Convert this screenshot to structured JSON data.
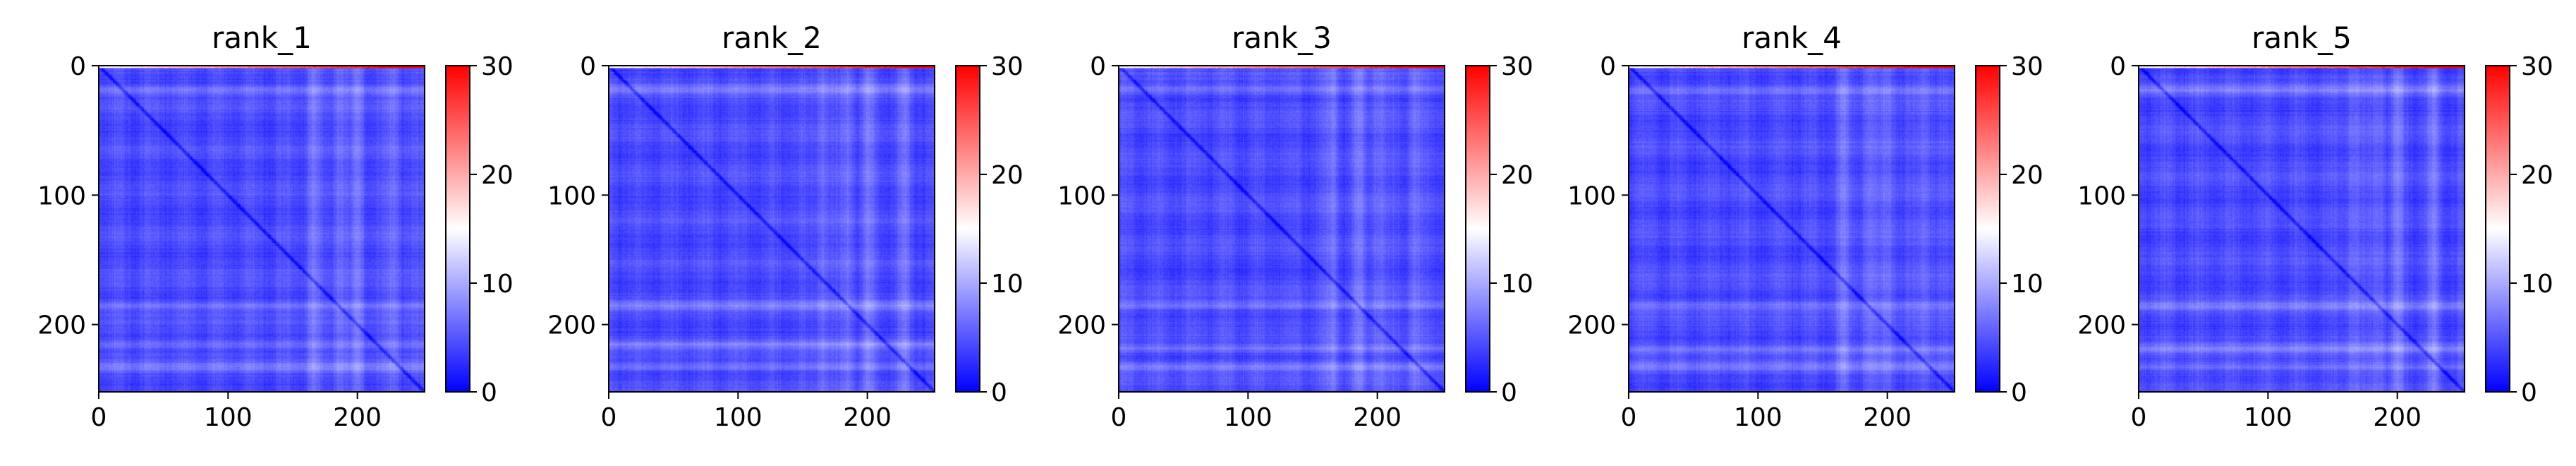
{
  "chart_data": [
    {
      "type": "heatmap",
      "title": "rank_1",
      "x_ticks": [
        0,
        100,
        200
      ],
      "y_ticks": [
        0,
        100,
        200
      ],
      "xlim": [
        0,
        252
      ],
      "ylim": [
        252,
        0
      ],
      "colorbar": {
        "ticks": [
          0,
          10,
          20,
          30
        ],
        "range": [
          0,
          30
        ],
        "colormap": "bwr"
      },
      "summary": {
        "background_range": [
          1,
          8
        ],
        "diagonal_value": 0,
        "bright_rows": [
          18,
          185,
          215,
          232
        ],
        "bright_columns": [
          165,
          185,
          200,
          228
        ],
        "top_row_max": 30
      }
    },
    {
      "type": "heatmap",
      "title": "rank_2",
      "x_ticks": [
        0,
        100,
        200
      ],
      "y_ticks": [
        0,
        100,
        200
      ],
      "xlim": [
        0,
        252
      ],
      "ylim": [
        252,
        0
      ],
      "colorbar": {
        "ticks": [
          0,
          10,
          20,
          30
        ],
        "range": [
          0,
          30
        ],
        "colormap": "bwr"
      },
      "summary": {
        "background_range": [
          1,
          8
        ],
        "diagonal_value": 0,
        "bright_rows": [
          18,
          185,
          215,
          232
        ],
        "bright_columns": [
          165,
          185,
          200,
          228
        ],
        "top_row_max": 30
      }
    },
    {
      "type": "heatmap",
      "title": "rank_3",
      "x_ticks": [
        0,
        100,
        200
      ],
      "y_ticks": [
        0,
        100,
        200
      ],
      "xlim": [
        0,
        252
      ],
      "ylim": [
        252,
        0
      ],
      "colorbar": {
        "ticks": [
          0,
          10,
          20,
          30
        ],
        "range": [
          0,
          30
        ],
        "colormap": "bwr"
      },
      "summary": {
        "background_range": [
          1,
          8
        ],
        "diagonal_value": 0,
        "bright_rows": [
          18,
          185,
          218,
          232
        ],
        "bright_columns": [
          165,
          185,
          200,
          228
        ],
        "top_row_max": 30
      }
    },
    {
      "type": "heatmap",
      "title": "rank_4",
      "x_ticks": [
        0,
        100,
        200
      ],
      "y_ticks": [
        0,
        100,
        200
      ],
      "xlim": [
        0,
        252
      ],
      "ylim": [
        252,
        0
      ],
      "colorbar": {
        "ticks": [
          0,
          10,
          20,
          30
        ],
        "range": [
          0,
          30
        ],
        "colormap": "bwr"
      },
      "summary": {
        "background_range": [
          1,
          8
        ],
        "diagonal_value": 0,
        "bright_rows": [
          18,
          185,
          218,
          232
        ],
        "bright_columns": [
          165,
          185,
          200,
          228
        ],
        "top_row_max": 30
      }
    },
    {
      "type": "heatmap",
      "title": "rank_5",
      "x_ticks": [
        0,
        100,
        200
      ],
      "y_ticks": [
        0,
        100,
        200
      ],
      "xlim": [
        0,
        252
      ],
      "ylim": [
        252,
        0
      ],
      "colorbar": {
        "ticks": [
          0,
          10,
          20,
          30
        ],
        "range": [
          0,
          30
        ],
        "colormap": "bwr"
      },
      "summary": {
        "background_range": [
          1,
          8
        ],
        "diagonal_value": 0,
        "bright_rows": [
          18,
          185,
          218,
          232
        ],
        "bright_columns": [
          165,
          185,
          200,
          228
        ],
        "top_row_max": 30
      }
    }
  ]
}
